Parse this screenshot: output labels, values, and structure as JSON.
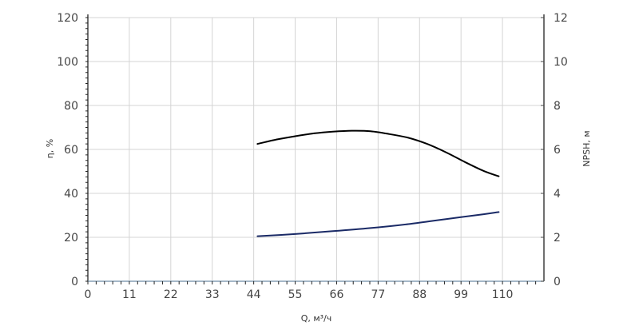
{
  "chart_data": {
    "type": "line",
    "xlabel": "Q, м³/ч",
    "ylabel_left": "η, %",
    "ylabel_right": "NPSH, м",
    "x_ticks": [
      "0",
      "11",
      "22",
      "33",
      "44",
      "55",
      "66",
      "77",
      "88",
      "99",
      "110"
    ],
    "xlim": [
      0,
      121
    ],
    "y_left_ticks": [
      "0",
      "20",
      "40",
      "60",
      "80",
      "100",
      "120"
    ],
    "ylim_left": [
      0,
      120
    ],
    "y_right_ticks": [
      "0",
      "2",
      "4",
      "6",
      "8",
      "10",
      "12"
    ],
    "ylim_right": [
      0,
      12
    ],
    "grid": true,
    "series": [
      {
        "axis": "left",
        "color": "#000000",
        "x": [
          45,
          50,
          55,
          60,
          65,
          70,
          75,
          80,
          85,
          90,
          95,
          100,
          105,
          109
        ],
        "y": [
          62.5,
          64.5,
          66,
          67.3,
          68.1,
          68.5,
          68.3,
          67,
          65.3,
          62.5,
          58.7,
          54.3,
          50.2,
          47.8
        ]
      },
      {
        "axis": "right",
        "color": "#1a2a66",
        "x": [
          45,
          55,
          65,
          75,
          85,
          95,
          105,
          109
        ],
        "y": [
          2.05,
          2.15,
          2.28,
          2.42,
          2.6,
          2.83,
          3.05,
          3.15
        ]
      }
    ]
  }
}
